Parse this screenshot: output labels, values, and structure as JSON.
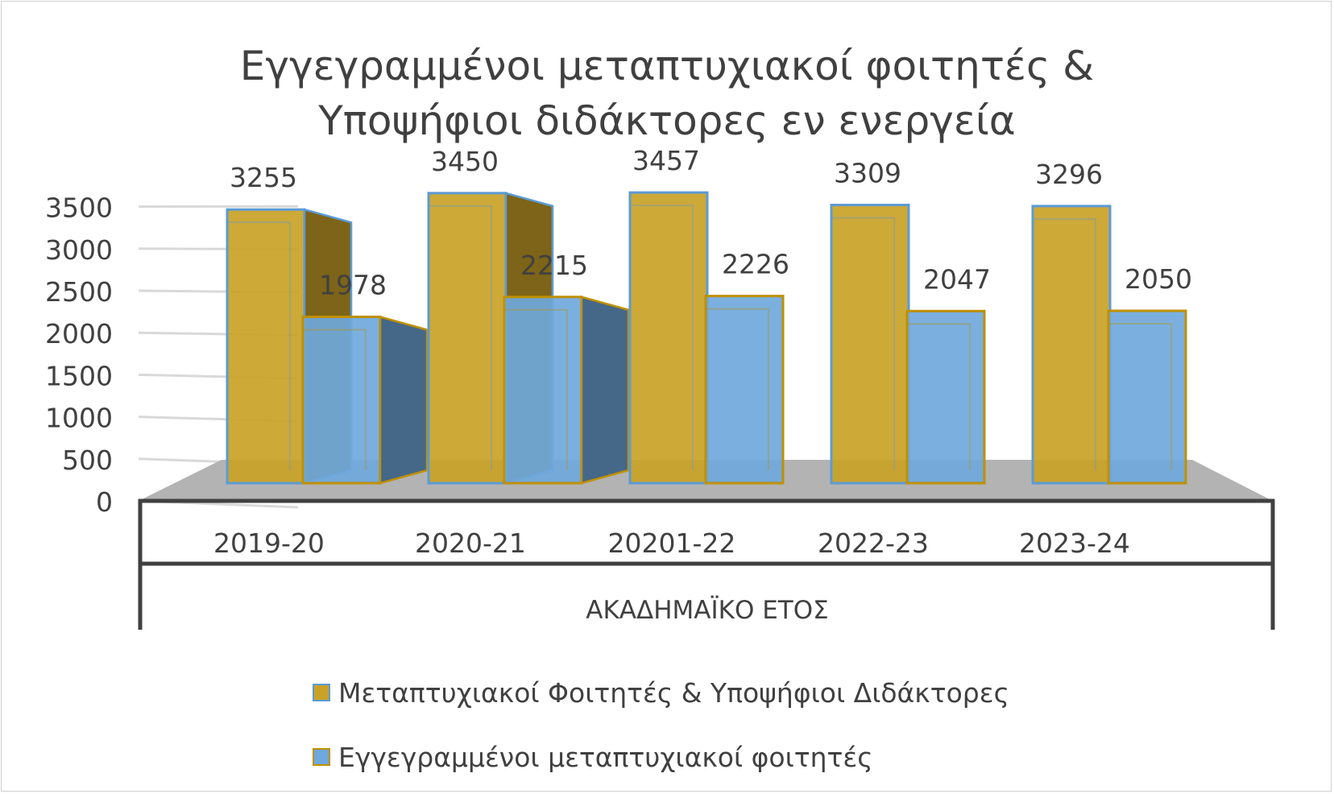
{
  "chart_data": {
    "type": "bar",
    "title_lines": [
      "Εγγεγραμμένοι μεταπτυχιακοί φοιτητές &",
      "Υποψήφιοι διδάκτορες εν ενεργεία"
    ],
    "xlabel": "ΑΚΑΔΗΜΑΪΚΟ ΕΤΟΣ",
    "ylabel": "",
    "categories": [
      "2019-20",
      "2020-21",
      "20201-22",
      "2022-23",
      "2023-24"
    ],
    "yticks": [
      "0",
      "500",
      "1000",
      "1500",
      "2000",
      "2500",
      "3000",
      "3500"
    ],
    "ylim": [
      0,
      3500
    ],
    "grid": true,
    "legend_position": "bottom",
    "series": [
      {
        "name": "Μεταπτυχιακοί Φοιτητές & Υποψήφιοι Διδάκτορες",
        "values": [
          3255,
          3450,
          3457,
          3309,
          3296
        ],
        "color": "#C9A227",
        "edge": "#5B9BD5"
      },
      {
        "name": "Εγγεγραμμένοι μεταπτυχιακοί φοιτητές",
        "values": [
          1978,
          2215,
          2226,
          2047,
          2050
        ],
        "color": "#6FA8DC",
        "edge": "#BF9000"
      }
    ]
  }
}
